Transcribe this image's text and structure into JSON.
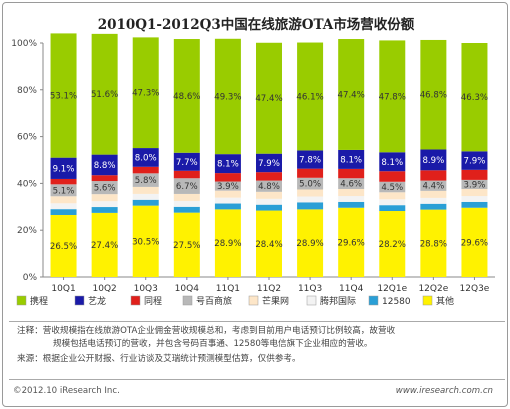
{
  "chart_data": {
    "type": "bar",
    "stacked": true,
    "title": "2010Q1-2012Q3中国在线旅游OTA市场营收份额",
    "categories": [
      "10Q1",
      "10Q2",
      "10Q3",
      "10Q4",
      "11Q1",
      "11Q2",
      "11Q3",
      "11Q4",
      "12Q1e",
      "12Q2e",
      "12Q3e"
    ],
    "ylim": [
      0,
      100
    ],
    "yticks": [
      "0%",
      "20%",
      "40%",
      "60%",
      "80%",
      "100%"
    ],
    "grid": false,
    "legend_position": "bottom",
    "series": [
      {
        "name": "其他",
        "color": "#fff200",
        "values": [
          26.5,
          27.4,
          30.5,
          27.5,
          28.9,
          28.4,
          28.9,
          29.6,
          28.2,
          28.8,
          29.6
        ],
        "labels": [
          "26.5%",
          "27.4%",
          "30.5%",
          "27.5%",
          "28.9%",
          "28.4%",
          "28.9%",
          "29.6%",
          "28.2%",
          "28.8%",
          "29.6%"
        ]
      },
      {
        "name": "12580",
        "color": "#2a9fd6",
        "values": [
          2.5,
          2.5,
          2.5,
          2.5,
          2.5,
          2.5,
          3.0,
          2.5,
          2.5,
          2.5,
          2.5
        ],
        "labels": [
          "",
          "",
          "",
          "",
          "",
          "",
          "",
          "",
          "",
          "",
          ""
        ]
      },
      {
        "name": "腾邦国际",
        "color": "#f3f3f3",
        "values": [
          2.5,
          2.5,
          2.5,
          2.5,
          2.5,
          2.5,
          2.5,
          2.5,
          2.5,
          2.5,
          2.5
        ],
        "labels": [
          "",
          "",
          "",
          "",
          "",
          "",
          "",
          "",
          "",
          "",
          ""
        ]
      },
      {
        "name": "芒果网",
        "color": "#fde6c8",
        "values": [
          3.0,
          3.0,
          3.0,
          3.0,
          3.0,
          3.0,
          3.0,
          3.0,
          3.0,
          3.0,
          3.0
        ],
        "labels": [
          "",
          "",
          "",
          "",
          "",
          "",
          "",
          "",
          "",
          "",
          ""
        ]
      },
      {
        "name": "号百商旅",
        "color": "#b8b8b8",
        "values": [
          5.1,
          5.6,
          5.8,
          6.7,
          3.9,
          4.8,
          5.0,
          4.6,
          4.5,
          4.4,
          3.9
        ],
        "labels": [
          "5.1%",
          "5.6%",
          "5.8%",
          "6.7%",
          "3.9%",
          "4.8%",
          "5.0%",
          "4.6%",
          "4.5%",
          "4.4%",
          "3.9%"
        ]
      },
      {
        "name": "同程",
        "color": "#e0201b",
        "values": [
          2.3,
          2.5,
          2.8,
          3.2,
          3.6,
          3.6,
          3.9,
          4.0,
          4.5,
          4.4,
          4.3
        ],
        "labels": [
          "",
          "",
          "",
          "",
          "",
          "",
          "",
          "",
          "",
          "",
          ""
        ]
      },
      {
        "name": "艺龙",
        "color": "#1a1aa8",
        "values": [
          9.1,
          8.8,
          8.0,
          7.7,
          8.1,
          7.9,
          7.8,
          8.1,
          8.1,
          8.9,
          7.9
        ],
        "labels": [
          "9.1%",
          "8.8%",
          "8.0%",
          "7.7%",
          "8.1%",
          "7.9%",
          "7.8%",
          "8.1%",
          "8.1%",
          "8.9%",
          "7.9%"
        ]
      },
      {
        "name": "携程",
        "color": "#99cc00",
        "values": [
          53.1,
          51.6,
          47.3,
          48.6,
          49.3,
          47.4,
          46.1,
          47.4,
          47.8,
          46.8,
          46.3
        ],
        "labels": [
          "53.1%",
          "51.6%",
          "47.3%",
          "48.6%",
          "49.3%",
          "47.4%",
          "46.1%",
          "47.4%",
          "47.8%",
          "46.8%",
          "46.3%"
        ]
      }
    ],
    "legend_order": [
      "携程",
      "艺龙",
      "同程",
      "号百商旅",
      "芒果网",
      "腾邦国际",
      "12580",
      "其他"
    ]
  },
  "notes": {
    "line1": "注释：营收规模指在线旅游OTA企业佣金营收规模总和，考虑到目前用户电话预订比例较高，故营收",
    "line2": "规模包括电话预订的营收，并包含号码百事通、12580等电信旗下企业相应的营收。",
    "line3": "来源：根据企业公开财报、行业访谈及艾瑞统计预测模型估算，仅供参考。"
  },
  "footer": {
    "copyright": "©2012.10 iResearch Inc.",
    "website": "www.iresearch.com.cn"
  }
}
